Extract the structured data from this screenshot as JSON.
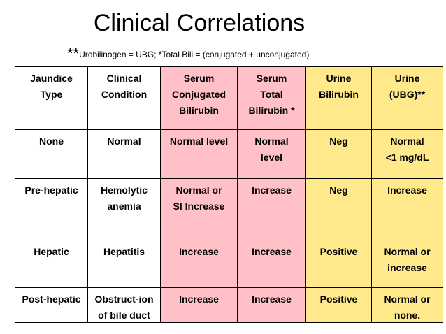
{
  "title": "Clinical Correlations",
  "note": {
    "stars": "**",
    "text": "Urobilinogen = UBG; *Total Bili = (conjugated + unconjugated)"
  },
  "table": {
    "headers": [
      {
        "lines": [
          "Jaundice",
          "Type"
        ]
      },
      {
        "lines": [
          "Clinical",
          "Condition"
        ]
      },
      {
        "lines": [
          "Serum",
          "Conjugated",
          "Bilirubin"
        ]
      },
      {
        "lines": [
          "Serum",
          "Total",
          "Bilirubin *"
        ]
      },
      {
        "lines": [
          "Urine",
          "Bilirubin"
        ]
      },
      {
        "lines": [
          "Urine",
          "(UBG)**"
        ]
      }
    ],
    "rows": [
      [
        {
          "lines": [
            "None"
          ]
        },
        {
          "lines": [
            "Normal"
          ]
        },
        {
          "lines": [
            "Normal level"
          ]
        },
        {
          "lines": [
            "Normal",
            "level"
          ]
        },
        {
          "lines": [
            "Neg"
          ]
        },
        {
          "lines": [
            "Normal",
            "<1 mg/dL"
          ]
        }
      ],
      [
        {
          "lines": [
            "Pre-hepatic"
          ]
        },
        {
          "lines": [
            "Hemolytic",
            "anemia"
          ]
        },
        {
          "lines": [
            "Normal or",
            "Sl Increase"
          ]
        },
        {
          "lines": [
            "Increase"
          ]
        },
        {
          "lines": [
            "Neg"
          ]
        },
        {
          "lines": [
            "Increase"
          ]
        }
      ],
      [
        {
          "lines": [
            "Hepatic"
          ]
        },
        {
          "lines": [
            "Hepatitis"
          ]
        },
        {
          "lines": [
            "Increase"
          ]
        },
        {
          "lines": [
            "Increase"
          ]
        },
        {
          "lines": [
            "Positive"
          ]
        },
        {
          "lines": [
            "Normal or",
            "increase"
          ]
        }
      ],
      [
        {
          "lines": [
            "Post-hepatic"
          ]
        },
        {
          "lines": [
            "Obstruct-ion",
            "of bile duct"
          ]
        },
        {
          "lines": [
            "Increase"
          ]
        },
        {
          "lines": [
            "Increase"
          ]
        },
        {
          "lines": [
            "Positive"
          ]
        },
        {
          "lines": [
            "Normal or",
            "none."
          ]
        }
      ]
    ],
    "colors": {
      "white": "#ffffff",
      "pink": "#ffc0c7",
      "yellow": "#ffe98a"
    }
  }
}
